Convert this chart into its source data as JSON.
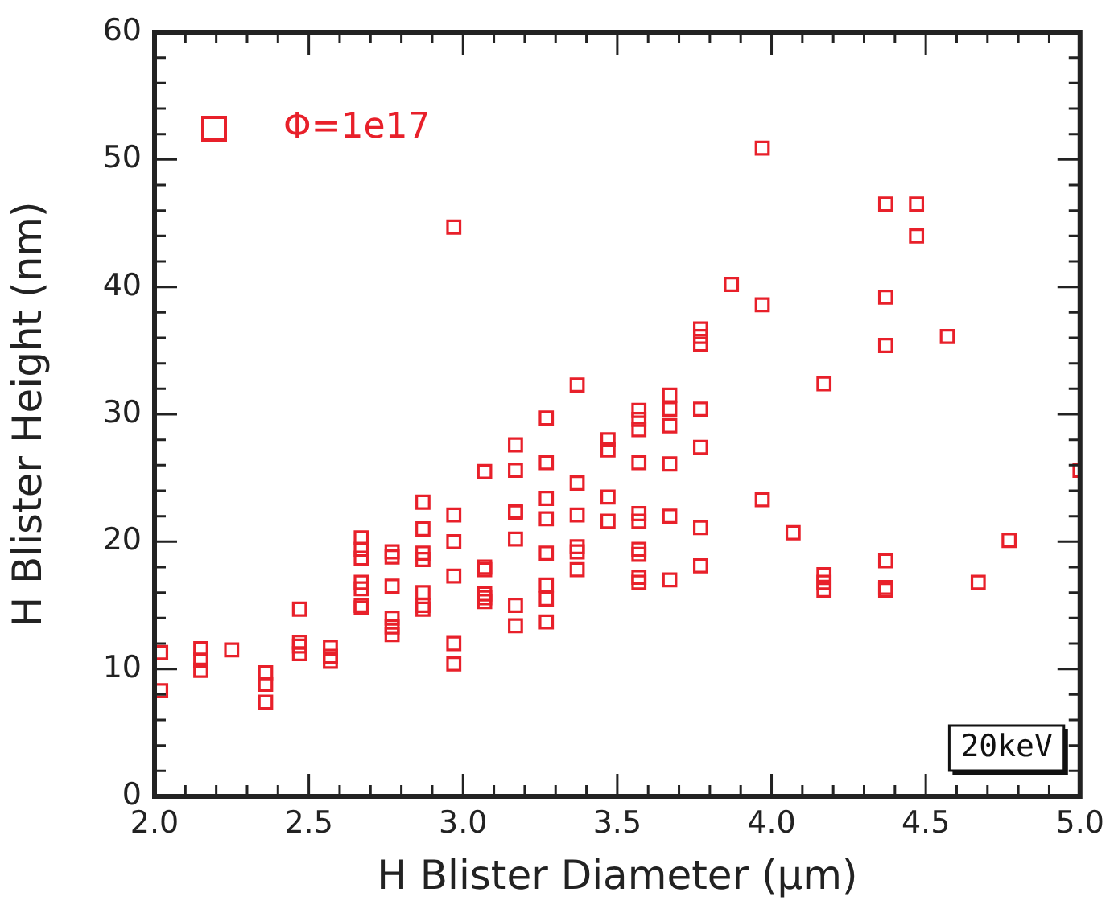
{
  "chart_data": {
    "type": "scatter",
    "xlabel": "H Blister Diameter (μm)",
    "ylabel": "H Blister Height (nm)",
    "xlim": [
      2.0,
      5.0
    ],
    "ylim": [
      0,
      60
    ],
    "xticks": [
      {
        "value": 2.0,
        "label": "2.0"
      },
      {
        "value": 2.1,
        "label": null
      },
      {
        "value": 2.2,
        "label": null
      },
      {
        "value": 2.3,
        "label": null
      },
      {
        "value": 2.4,
        "label": null
      },
      {
        "value": 2.5,
        "label": "2.5"
      },
      {
        "value": 2.6,
        "label": null
      },
      {
        "value": 2.7,
        "label": null
      },
      {
        "value": 2.8,
        "label": null
      },
      {
        "value": 2.9,
        "label": null
      },
      {
        "value": 3.0,
        "label": "3.0"
      },
      {
        "value": 3.1,
        "label": null
      },
      {
        "value": 3.2,
        "label": null
      },
      {
        "value": 3.3,
        "label": null
      },
      {
        "value": 3.4,
        "label": null
      },
      {
        "value": 3.5,
        "label": "3.5"
      },
      {
        "value": 3.6,
        "label": null
      },
      {
        "value": 3.7,
        "label": null
      },
      {
        "value": 3.8,
        "label": null
      },
      {
        "value": 3.9,
        "label": null
      },
      {
        "value": 4.0,
        "label": "4.0"
      },
      {
        "value": 4.1,
        "label": null
      },
      {
        "value": 4.2,
        "label": null
      },
      {
        "value": 4.3,
        "label": null
      },
      {
        "value": 4.4,
        "label": null
      },
      {
        "value": 4.5,
        "label": "4.5"
      },
      {
        "value": 4.6,
        "label": null
      },
      {
        "value": 4.7,
        "label": null
      },
      {
        "value": 4.8,
        "label": null
      },
      {
        "value": 4.9,
        "label": null
      },
      {
        "value": 5.0,
        "label": "5.0"
      }
    ],
    "yticks": [
      0,
      {
        "value": 2,
        "label": null
      },
      {
        "value": 4,
        "label": null
      },
      {
        "value": 6,
        "label": null
      },
      {
        "value": 8,
        "label": null
      },
      10,
      {
        "value": 12,
        "label": null
      },
      {
        "value": 14,
        "label": null
      },
      {
        "value": 16,
        "label": null
      },
      {
        "value": 18,
        "label": null
      },
      20,
      {
        "value": 22,
        "label": null
      },
      {
        "value": 24,
        "label": null
      },
      {
        "value": 26,
        "label": null
      },
      {
        "value": 28,
        "label": null
      },
      30,
      {
        "value": 32,
        "label": null
      },
      {
        "value": 34,
        "label": null
      },
      {
        "value": 36,
        "label": null
      },
      {
        "value": 38,
        "label": null
      },
      40,
      {
        "value": 42,
        "label": null
      },
      {
        "value": 44,
        "label": null
      },
      {
        "value": 46,
        "label": null
      },
      {
        "value": 48,
        "label": null
      },
      50,
      {
        "value": 52,
        "label": null
      },
      {
        "value": 54,
        "label": null
      },
      {
        "value": 56,
        "label": null
      },
      {
        "value": 58,
        "label": null
      },
      60
    ],
    "grid": false,
    "legend": "top left",
    "marker": "square",
    "annotations": [
      "20keV"
    ],
    "series": [
      {
        "name": "Φ=1e17",
        "color": "#e8202a",
        "x": [
          2.02,
          2.02,
          2.15,
          2.15,
          2.15,
          2.25,
          2.36,
          2.36,
          2.36,
          2.47,
          2.47,
          2.47,
          2.47,
          2.57,
          2.57,
          2.57,
          2.67,
          2.67,
          2.67,
          2.67,
          2.67,
          2.67,
          2.67,
          2.77,
          2.77,
          2.77,
          2.77,
          2.77,
          2.77,
          2.87,
          2.87,
          2.87,
          2.87,
          2.87,
          2.87,
          2.87,
          2.97,
          2.97,
          2.97,
          2.97,
          2.97,
          2.97,
          3.07,
          3.07,
          3.07,
          3.07,
          3.07,
          3.07,
          3.17,
          3.17,
          3.17,
          3.17,
          3.17,
          3.17,
          3.17,
          3.27,
          3.27,
          3.27,
          3.27,
          3.27,
          3.27,
          3.27,
          3.27,
          3.37,
          3.37,
          3.37,
          3.37,
          3.37,
          3.37,
          3.47,
          3.47,
          3.47,
          3.47,
          3.57,
          3.57,
          3.57,
          3.57,
          3.57,
          3.57,
          3.57,
          3.57,
          3.57,
          3.57,
          3.67,
          3.67,
          3.67,
          3.67,
          3.67,
          3.67,
          3.77,
          3.77,
          3.77,
          3.77,
          3.77,
          3.77,
          3.77,
          3.87,
          3.97,
          3.97,
          3.97,
          4.07,
          4.17,
          4.17,
          4.17,
          4.17,
          4.37,
          4.37,
          4.37,
          4.37,
          4.37,
          4.37,
          4.47,
          4.47,
          4.57,
          4.67,
          4.77,
          5.0
        ],
        "values": [
          11.3,
          8.3,
          11.6,
          10.7,
          9.9,
          11.5,
          9.7,
          8.8,
          7.4,
          14.7,
          12.1,
          11.8,
          11.2,
          11.7,
          11.0,
          10.6,
          20.3,
          19.4,
          18.7,
          16.8,
          16.3,
          15.0,
          14.8,
          19.2,
          18.8,
          16.5,
          14.0,
          13.3,
          12.7,
          23.1,
          21.0,
          19.1,
          18.6,
          16.0,
          15.0,
          14.7,
          44.7,
          22.1,
          20.0,
          17.3,
          12.0,
          10.4,
          25.5,
          18.0,
          17.8,
          15.9,
          15.6,
          15.3,
          27.6,
          25.6,
          22.4,
          22.3,
          20.2,
          15.0,
          13.4,
          29.7,
          26.2,
          23.4,
          21.8,
          19.1,
          16.6,
          15.5,
          13.7,
          32.3,
          24.6,
          22.1,
          19.6,
          19.2,
          17.8,
          28.0,
          27.2,
          23.5,
          21.6,
          30.3,
          29.6,
          28.8,
          26.2,
          22.2,
          21.6,
          19.4,
          19.0,
          17.2,
          16.8,
          31.5,
          30.4,
          29.1,
          26.1,
          22.0,
          17.0,
          36.7,
          36.1,
          35.5,
          30.4,
          27.4,
          21.1,
          18.1,
          40.2,
          50.9,
          38.6,
          23.3,
          20.7,
          32.4,
          17.4,
          16.8,
          16.2,
          46.5,
          39.2,
          35.4,
          18.5,
          16.4,
          16.2,
          46.5,
          44.0,
          36.1,
          16.8,
          20.1,
          25.6
        ]
      }
    ]
  }
}
